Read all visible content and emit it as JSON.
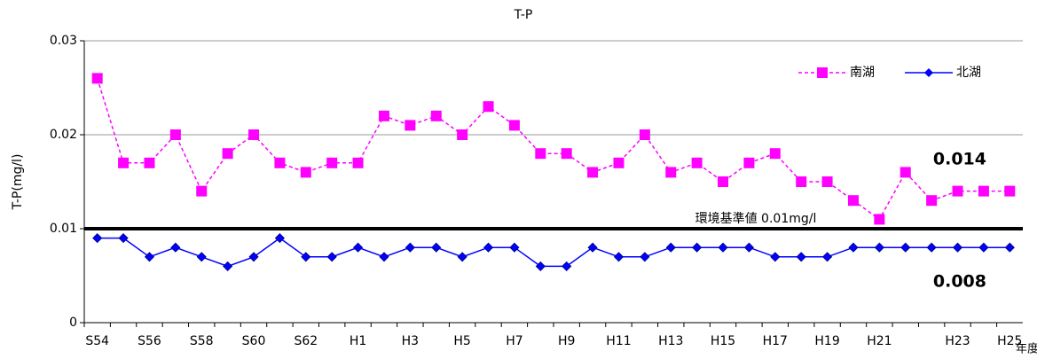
{
  "chart_data": {
    "type": "line",
    "title": "T-P",
    "y_label": "T-P(mg/l)",
    "x_label": "年度",
    "categories": [
      "S54",
      null,
      "S56",
      null,
      "S58",
      null,
      "S60",
      null,
      "S62",
      null,
      "H1",
      null,
      "H3",
      null,
      "H5",
      null,
      "H7",
      null,
      "H9",
      null,
      "H11",
      null,
      "H13",
      null,
      "H15",
      null,
      "H17",
      null,
      "H19",
      null,
      "H21",
      null,
      null,
      "H23",
      null,
      "H25"
    ],
    "series": [
      {
        "name": "南湖",
        "color": "#ff00ff",
        "dash": true,
        "marker": "square",
        "values": [
          0.026,
          0.017,
          0.017,
          0.02,
          0.014,
          0.018,
          0.02,
          0.017,
          0.016,
          0.017,
          0.017,
          0.022,
          0.021,
          0.022,
          0.02,
          0.023,
          0.021,
          0.018,
          0.018,
          0.016,
          0.017,
          0.02,
          0.016,
          0.017,
          0.015,
          0.017,
          0.018,
          0.015,
          0.015,
          0.013,
          0.011,
          0.016,
          0.013,
          0.014,
          0.014,
          0.014
        ]
      },
      {
        "name": "北湖",
        "color": "#0000ff",
        "dash": false,
        "marker": "diamond",
        "values": [
          0.009,
          0.009,
          0.007,
          0.008,
          0.007,
          0.006,
          0.007,
          0.009,
          0.007,
          0.007,
          0.008,
          0.007,
          0.008,
          0.008,
          0.007,
          0.008,
          0.008,
          0.006,
          0.006,
          0.008,
          0.007,
          0.007,
          0.008,
          0.008,
          0.008,
          0.008,
          0.007,
          0.007,
          0.007,
          0.008,
          0.008,
          0.008,
          0.008,
          0.008,
          0.008,
          0.008
        ]
      }
    ],
    "ylim": [
      0,
      0.03
    ],
    "yticks": [
      0,
      0.01,
      0.02,
      0.03
    ],
    "grid": true,
    "legend": "upper right",
    "reference_line": {
      "value": 0.01,
      "label": "環境基準値 0.01mg/l"
    },
    "annotations": [
      "0.014",
      "0.008"
    ]
  }
}
